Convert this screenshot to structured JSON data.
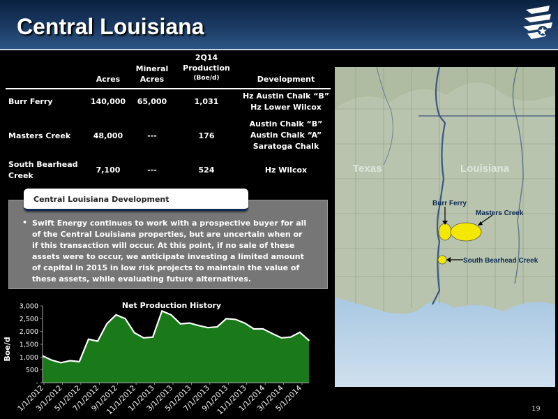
{
  "slide": {
    "title": "Central Louisiana",
    "page_number": "19"
  },
  "table": {
    "headers": {
      "acres": "Acres",
      "mineral": [
        "Mineral",
        "Acres"
      ],
      "production": [
        "2Q14",
        "Production",
        "(Boe/d)"
      ],
      "development": "Development"
    },
    "rows": [
      {
        "name": [
          "Burr Ferry"
        ],
        "acres": "140,000",
        "mineral": "65,000",
        "production": "1,031",
        "development": [
          "Hz Austin Chalk “B”",
          "Hz Lower Wilcox"
        ]
      },
      {
        "name": [
          "Masters Creek"
        ],
        "acres": "48,000",
        "mineral": "---",
        "production": "176",
        "development": [
          "Austin Chalk “B”",
          "Austin Chalk “A”",
          "Saratoga Chalk"
        ]
      },
      {
        "name": [
          "South Bearhead",
          "Creek"
        ],
        "acres": "7,100",
        "mineral": "---",
        "production": "524",
        "development": [
          "Hz Wilcox"
        ]
      }
    ]
  },
  "development_box": {
    "heading": "Central Louisiana Development",
    "bullet": "•",
    "lines": [
      "Swift Energy continues to work with a prospective buyer for all",
      "of the Central Louisiana properties, but are uncertain when or",
      "if this transaction will occur. At this point, if no sale of these",
      "assets were to occur, we anticipate investing a limited amount",
      "of capital in 2015 in low risk projects to maintain the value of",
      "these assets, while evaluating future alternatives."
    ]
  },
  "map": {
    "state_labels": [
      "Texas",
      "Louisiana"
    ],
    "field_labels": [
      "Burr Ferry",
      "Masters Creek",
      "South Bearhead Creek"
    ],
    "field_color": "#f5e800"
  },
  "chart_data": {
    "type": "area",
    "title": "Net Production History",
    "ylabel": "Boe/d",
    "xlabel": "",
    "ylim": [
      0,
      3000
    ],
    "y_ticks": [
      "-",
      "500",
      "1,000",
      "1,500",
      "2,000",
      "2,500",
      "3,000"
    ],
    "x_ticks": [
      "1/1/2012",
      "3/1/2012",
      "5/1/2012",
      "7/1/2012",
      "9/1/2012",
      "11/1/2012",
      "1/1/2013",
      "3/1/2013",
      "5/1/2013",
      "7/1/2013",
      "9/1/2013",
      "11/1/2013",
      "1/1/2014",
      "3/1/2014",
      "5/1/2014"
    ],
    "fill_color": "#1a7a1a",
    "line_color": "#ffffff",
    "series": [
      {
        "values": [
          1050,
          880,
          780,
          860,
          820,
          1700,
          1620,
          2300,
          2650,
          2500,
          1950,
          1750,
          1780,
          2800,
          2650,
          2300,
          2330,
          2230,
          2150,
          2180,
          2500,
          2470,
          2330,
          2100,
          2100,
          1920,
          1750,
          1780,
          1970,
          1650
        ]
      }
    ]
  }
}
